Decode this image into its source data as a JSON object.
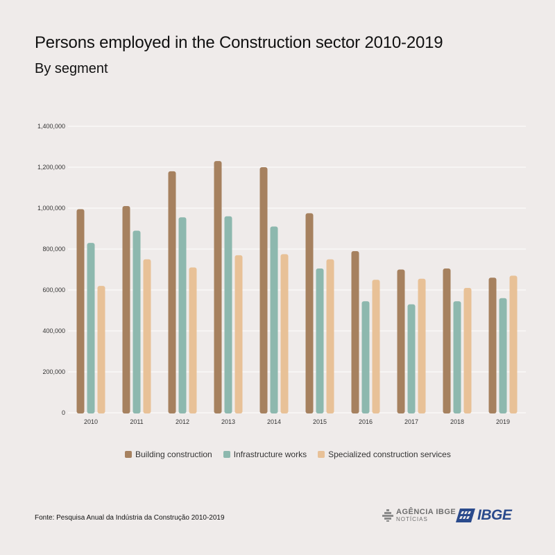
{
  "title": "Persons employed in the Construction sector 2010-2019",
  "subtitle": "By segment",
  "source": "Fonte: Pesquisa Anual da Indústria da Construção 2010-2019",
  "logos": {
    "agencia_line1": "AGÊNCIA IBGE",
    "agencia_line2": "NOTÍCIAS",
    "ibge": "IBGE"
  },
  "colors": {
    "background": "#efebea",
    "building": "#a6815f",
    "infrastructure": "#8db8ae",
    "specialized": "#e8c197",
    "grid": "#ffffff",
    "ibge_blue": "#2a4a8c"
  },
  "chart_data": {
    "type": "bar",
    "title": "Persons employed in the Construction sector 2010-2019",
    "subtitle": "By segment",
    "xlabel": "",
    "ylabel": "",
    "ylim": [
      0,
      1400000
    ],
    "yticks": [
      0,
      200000,
      400000,
      600000,
      800000,
      1000000,
      1200000,
      1400000
    ],
    "ytick_labels": [
      "0",
      "200,000",
      "400,000",
      "600,000",
      "800,000",
      "1,000,000",
      "1,200,000",
      "1,400,000"
    ],
    "grid": true,
    "legend_position": "bottom",
    "categories": [
      "2010",
      "2011",
      "2012",
      "2013",
      "2014",
      "2015",
      "2016",
      "2017",
      "2018",
      "2019"
    ],
    "series": [
      {
        "name": "Building construction",
        "color": "#a6815f",
        "values": [
          995000,
          1010000,
          1180000,
          1230000,
          1200000,
          975000,
          790000,
          700000,
          705000,
          660000
        ]
      },
      {
        "name": "Infrastructure works",
        "color": "#8db8ae",
        "values": [
          830000,
          890000,
          955000,
          960000,
          910000,
          705000,
          545000,
          530000,
          545000,
          560000
        ]
      },
      {
        "name": "Specialized construction services",
        "color": "#e8c197",
        "values": [
          620000,
          750000,
          710000,
          770000,
          775000,
          750000,
          650000,
          655000,
          610000,
          670000
        ]
      }
    ]
  }
}
